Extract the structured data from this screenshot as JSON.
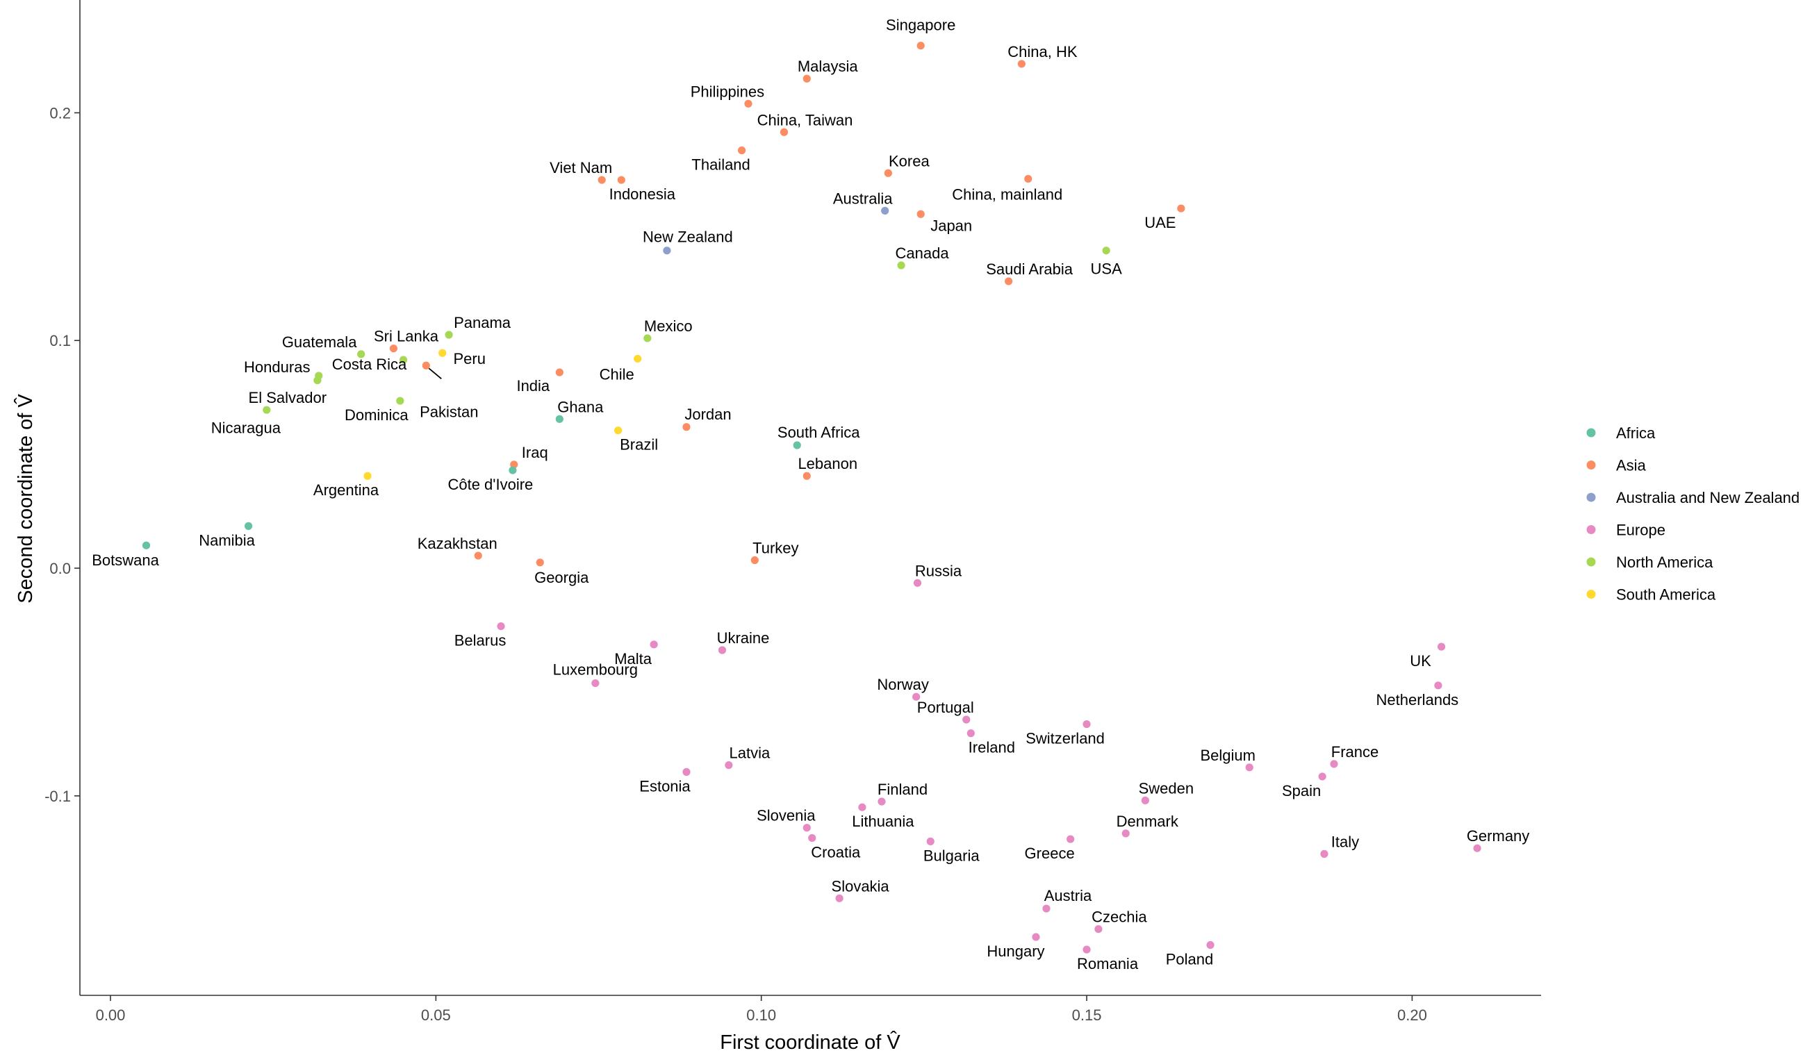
{
  "chart_data": {
    "type": "scatter",
    "title": "",
    "xlabel": "First coordinate of V̂",
    "ylabel": "Second coordinate of V̂",
    "xlim": [
      -0.005,
      0.22
    ],
    "ylim": [
      -0.188,
      0.248
    ],
    "x_ticks": [
      0.0,
      0.05,
      0.1,
      0.15,
      0.2
    ],
    "x_tick_labels": [
      "0.00",
      "0.05",
      "0.10",
      "0.15",
      "0.20"
    ],
    "y_ticks": [
      -0.1,
      0.0,
      0.1,
      0.2
    ],
    "y_tick_labels": [
      "-0.1",
      "0.0",
      "0.1",
      "0.2"
    ],
    "grid": false,
    "legend_position": "right",
    "groups": [
      {
        "name": "Africa",
        "color": "#66c2a5"
      },
      {
        "name": "Asia",
        "color": "#fc8d62"
      },
      {
        "name": "Australia and New Zealand",
        "color": "#8da0cb"
      },
      {
        "name": "Europe",
        "color": "#e78ac3"
      },
      {
        "name": "North America",
        "color": "#a6d854"
      },
      {
        "name": "South America",
        "color": "#ffd92f"
      }
    ],
    "points": [
      {
        "label": "Singapore",
        "x": 0.1245,
        "y": 0.2295,
        "group": "Asia"
      },
      {
        "label": "China, HK",
        "x": 0.14,
        "y": 0.2215,
        "group": "Asia"
      },
      {
        "label": "Malaysia",
        "x": 0.107,
        "y": 0.215,
        "group": "Asia"
      },
      {
        "label": "Philippines",
        "x": 0.098,
        "y": 0.204,
        "group": "Asia"
      },
      {
        "label": "China, Taiwan",
        "x": 0.1035,
        "y": 0.1915,
        "group": "Asia"
      },
      {
        "label": "Thailand",
        "x": 0.097,
        "y": 0.1835,
        "group": "Asia"
      },
      {
        "label": "Viet Nam",
        "x": 0.0755,
        "y": 0.1705,
        "group": "Asia"
      },
      {
        "label": "Indonesia",
        "x": 0.0785,
        "y": 0.1705,
        "group": "Asia"
      },
      {
        "label": "Korea",
        "x": 0.1195,
        "y": 0.1735,
        "group": "Asia"
      },
      {
        "label": "China, mainland",
        "x": 0.141,
        "y": 0.171,
        "group": "Asia"
      },
      {
        "label": "Japan",
        "x": 0.1245,
        "y": 0.1555,
        "group": "Asia"
      },
      {
        "label": "Australia",
        "x": 0.119,
        "y": 0.157,
        "group": "Australia and New Zealand"
      },
      {
        "label": "UAE",
        "x": 0.1645,
        "y": 0.158,
        "group": "Asia"
      },
      {
        "label": "New Zealand",
        "x": 0.0855,
        "y": 0.1395,
        "group": "Australia and New Zealand"
      },
      {
        "label": "USA",
        "x": 0.153,
        "y": 0.1395,
        "group": "North America"
      },
      {
        "label": "Canada",
        "x": 0.1215,
        "y": 0.133,
        "group": "North America"
      },
      {
        "label": "Saudi Arabia",
        "x": 0.138,
        "y": 0.126,
        "group": "Asia"
      },
      {
        "label": "Panama",
        "x": 0.052,
        "y": 0.1025,
        "group": "North America"
      },
      {
        "label": "Mexico",
        "x": 0.0825,
        "y": 0.101,
        "group": "North America"
      },
      {
        "label": "Sri Lanka",
        "x": 0.0435,
        "y": 0.0965,
        "group": "Asia"
      },
      {
        "label": "Guatemala",
        "x": 0.0385,
        "y": 0.094,
        "group": "North America"
      },
      {
        "label": "Peru",
        "x": 0.051,
        "y": 0.0945,
        "group": "South America"
      },
      {
        "label": "Chile",
        "x": 0.081,
        "y": 0.092,
        "group": "South America"
      },
      {
        "label": "Costa Rica",
        "x": 0.045,
        "y": 0.0915,
        "group": "North America"
      },
      {
        "label": "Pakistan",
        "x": 0.0485,
        "y": 0.089,
        "group": "Asia"
      },
      {
        "label": "Honduras",
        "x": 0.032,
        "y": 0.0845,
        "group": "North America"
      },
      {
        "label": "Nicaragua",
        "x": 0.0318,
        "y": 0.0825,
        "group": "North America"
      },
      {
        "label": "India",
        "x": 0.069,
        "y": 0.086,
        "group": "Asia"
      },
      {
        "label": "Dominica",
        "x": 0.0445,
        "y": 0.0735,
        "group": "North America"
      },
      {
        "label": "El Salvador",
        "x": 0.024,
        "y": 0.0695,
        "group": "North America"
      },
      {
        "label": "Ghana",
        "x": 0.069,
        "y": 0.0655,
        "group": "Africa"
      },
      {
        "label": "Jordan",
        "x": 0.0885,
        "y": 0.062,
        "group": "Asia"
      },
      {
        "label": "Brazil",
        "x": 0.078,
        "y": 0.0605,
        "group": "South America"
      },
      {
        "label": "South Africa",
        "x": 0.1055,
        "y": 0.054,
        "group": "Africa"
      },
      {
        "label": "Iraq",
        "x": 0.062,
        "y": 0.0455,
        "group": "Asia"
      },
      {
        "label": "Côte d'Ivoire",
        "x": 0.0618,
        "y": 0.043,
        "group": "Africa"
      },
      {
        "label": "Lebanon",
        "x": 0.107,
        "y": 0.0405,
        "group": "Asia"
      },
      {
        "label": "Argentina",
        "x": 0.0395,
        "y": 0.0405,
        "group": "South America"
      },
      {
        "label": "Namibia",
        "x": 0.0212,
        "y": 0.0185,
        "group": "Africa"
      },
      {
        "label": "Botswana",
        "x": 0.0055,
        "y": 0.01,
        "group": "Africa"
      },
      {
        "label": "Kazakhstan",
        "x": 0.0565,
        "y": 0.0055,
        "group": "Asia"
      },
      {
        "label": "Turkey",
        "x": 0.099,
        "y": 0.0035,
        "group": "Asia"
      },
      {
        "label": "Georgia",
        "x": 0.066,
        "y": 0.0025,
        "group": "Asia"
      },
      {
        "label": "Russia",
        "x": 0.124,
        "y": -0.0065,
        "group": "Europe"
      },
      {
        "label": "Belarus",
        "x": 0.06,
        "y": -0.0255,
        "group": "Europe"
      },
      {
        "label": "Malta",
        "x": 0.0835,
        "y": -0.0335,
        "group": "Europe"
      },
      {
        "label": "Ukraine",
        "x": 0.094,
        "y": -0.036,
        "group": "Europe"
      },
      {
        "label": "UK",
        "x": 0.2045,
        "y": -0.0345,
        "group": "Europe"
      },
      {
        "label": "Luxembourg",
        "x": 0.0745,
        "y": -0.0505,
        "group": "Europe"
      },
      {
        "label": "Netherlands",
        "x": 0.204,
        "y": -0.0515,
        "group": "Europe"
      },
      {
        "label": "Norway",
        "x": 0.1238,
        "y": -0.0565,
        "group": "Europe"
      },
      {
        "label": "Portugal",
        "x": 0.1315,
        "y": -0.0665,
        "group": "Europe"
      },
      {
        "label": "Switzerland",
        "x": 0.15,
        "y": -0.0685,
        "group": "Europe"
      },
      {
        "label": "Ireland",
        "x": 0.1322,
        "y": -0.0725,
        "group": "Europe"
      },
      {
        "label": "Latvia",
        "x": 0.095,
        "y": -0.0865,
        "group": "Europe"
      },
      {
        "label": "Estonia",
        "x": 0.0885,
        "y": -0.0895,
        "group": "Europe"
      },
      {
        "label": "Belgium",
        "x": 0.175,
        "y": -0.0875,
        "group": "Europe"
      },
      {
        "label": "France",
        "x": 0.188,
        "y": -0.086,
        "group": "Europe"
      },
      {
        "label": "Spain",
        "x": 0.1862,
        "y": -0.0915,
        "group": "Europe"
      },
      {
        "label": "Sweden",
        "x": 0.159,
        "y": -0.102,
        "group": "Europe"
      },
      {
        "label": "Finland",
        "x": 0.1185,
        "y": -0.1025,
        "group": "Europe"
      },
      {
        "label": "Lithuania",
        "x": 0.1155,
        "y": -0.105,
        "group": "Europe"
      },
      {
        "label": "Slovenia",
        "x": 0.107,
        "y": -0.114,
        "group": "Europe"
      },
      {
        "label": "Denmark",
        "x": 0.156,
        "y": -0.1165,
        "group": "Europe"
      },
      {
        "label": "Croatia",
        "x": 0.1078,
        "y": -0.1185,
        "group": "Europe"
      },
      {
        "label": "Greece",
        "x": 0.1475,
        "y": -0.119,
        "group": "Europe"
      },
      {
        "label": "Bulgaria",
        "x": 0.126,
        "y": -0.12,
        "group": "Europe"
      },
      {
        "label": "Germany",
        "x": 0.21,
        "y": -0.123,
        "group": "Europe"
      },
      {
        "label": "Italy",
        "x": 0.1865,
        "y": -0.1255,
        "group": "Europe"
      },
      {
        "label": "Slovakia",
        "x": 0.112,
        "y": -0.145,
        "group": "Europe"
      },
      {
        "label": "Austria",
        "x": 0.1438,
        "y": -0.1495,
        "group": "Europe"
      },
      {
        "label": "Czechia",
        "x": 0.1518,
        "y": -0.1585,
        "group": "Europe"
      },
      {
        "label": "Hungary",
        "x": 0.1422,
        "y": -0.162,
        "group": "Europe"
      },
      {
        "label": "Poland",
        "x": 0.169,
        "y": -0.1655,
        "group": "Europe"
      },
      {
        "label": "Romania",
        "x": 0.15,
        "y": -0.1675,
        "group": "Europe"
      }
    ]
  }
}
